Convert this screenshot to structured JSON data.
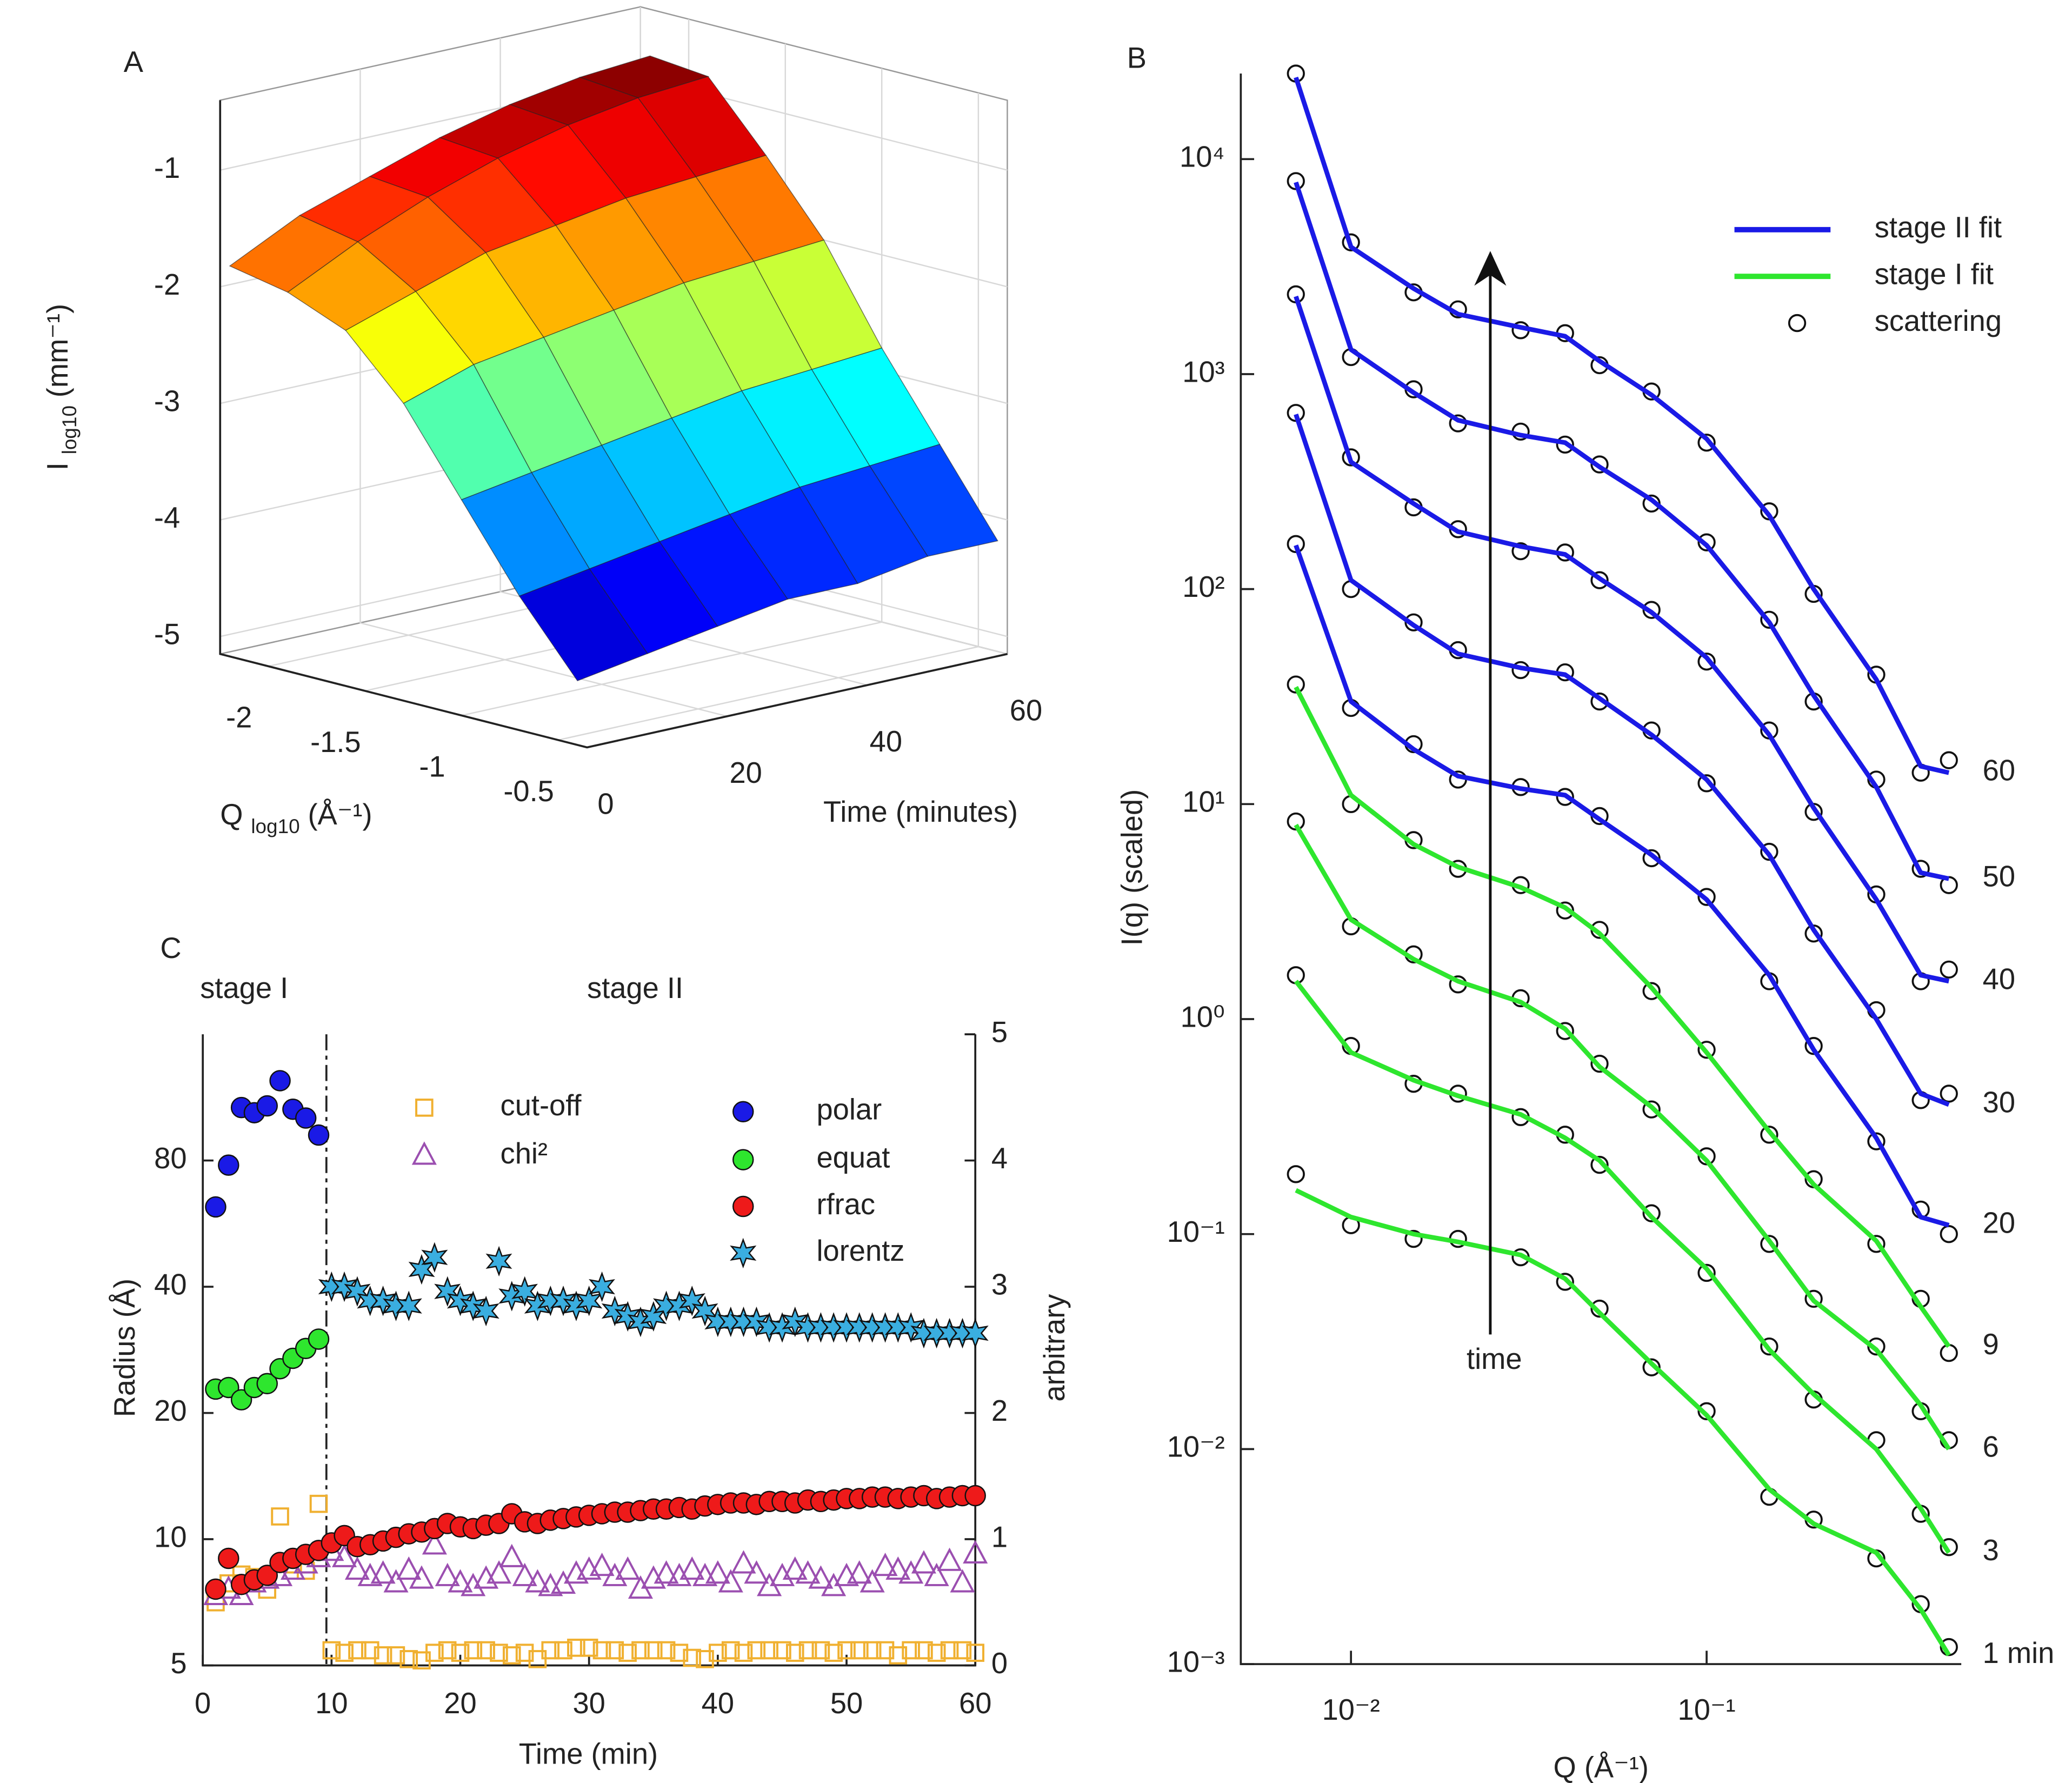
{
  "chart_data": [
    {
      "type": "surface",
      "panel": "A",
      "zlabel": {
        "main": "I",
        "sub": "log10",
        "unit": "(mm⁻¹)"
      },
      "xlabel": {
        "main": "Q",
        "sub": "log10",
        "unit": "(Å⁻¹)"
      },
      "ylabel": "Time (minutes)",
      "x": [
        -2.2,
        -1.9,
        -1.6,
        -1.3,
        -1.0,
        -0.7,
        -0.4
      ],
      "y": [
        0,
        10,
        20,
        30,
        40,
        50,
        60
      ],
      "z": [
        [
          -1.8,
          -1.9,
          -2.1,
          -2.6,
          -3.3,
          -4.0,
          -4.6
        ],
        [
          -1.5,
          -1.6,
          -1.9,
          -2.4,
          -3.2,
          -3.9,
          -4.5
        ],
        [
          -1.3,
          -1.35,
          -1.7,
          -2.3,
          -3.1,
          -3.8,
          -4.4
        ],
        [
          -1.1,
          -1.15,
          -1.6,
          -2.2,
          -3.0,
          -3.7,
          -4.3
        ],
        [
          -0.95,
          -1.0,
          -1.5,
          -2.1,
          -2.9,
          -3.6,
          -4.3
        ],
        [
          -0.85,
          -0.9,
          -1.45,
          -2.05,
          -2.85,
          -3.55,
          -4.2
        ],
        [
          -0.8,
          -0.85,
          -1.4,
          -2.0,
          -2.8,
          -3.5,
          -4.2
        ]
      ],
      "xlim": [
        -2.25,
        -0.35
      ],
      "ylim": [
        0,
        60
      ],
      "zlim": [
        -5.15,
        -0.4
      ],
      "xticks": [
        -2,
        -1.5,
        -1,
        -0.5
      ],
      "yticks": [
        0,
        20,
        40,
        60
      ],
      "zticks": [
        -5,
        -4,
        -3,
        -2,
        -1
      ],
      "colormap": "jet",
      "grid": true
    },
    {
      "type": "line",
      "panel": "B",
      "xlabel": "Q (Å⁻¹)",
      "ylabel": "I(q) (scaled)",
      "annotation": "time",
      "xscale": "log",
      "yscale": "log",
      "xlim": [
        0.0049,
        0.52
      ],
      "ylim": [
        0.001,
        25000
      ],
      "xticks": [
        {
          "value": 0.01,
          "label": "10⁻²"
        },
        {
          "value": 0.1,
          "label": "10⁻¹"
        }
      ],
      "yticks": [
        {
          "value": 0.001,
          "label": "10⁻³"
        },
        {
          "value": 0.01,
          "label": "10⁻²"
        },
        {
          "value": 0.1,
          "label": "10⁻¹"
        },
        {
          "value": 1,
          "label": "10⁰"
        },
        {
          "value": 10,
          "label": "10¹"
        },
        {
          "value": 100,
          "label": "10²"
        },
        {
          "value": 1000,
          "label": "10³"
        },
        {
          "value": 10000,
          "label": "10⁴"
        }
      ],
      "x": [
        0.007,
        0.01,
        0.015,
        0.02,
        0.03,
        0.04,
        0.05,
        0.07,
        0.1,
        0.15,
        0.2,
        0.3,
        0.4,
        0.48
      ],
      "series": [
        {
          "name": "60",
          "color": "#1a1ae6",
          "values": [
            24000,
            3900,
            2500,
            1900,
            1650,
            1500,
            1150,
            800,
            500,
            220,
            100,
            38,
            15,
            14
          ],
          "scatter": [
            25000,
            4100,
            2400,
            2000,
            1600,
            1550,
            1100,
            830,
            480,
            230,
            95,
            40,
            14,
            16
          ]
        },
        {
          "name": "50",
          "color": "#1a1ae6",
          "values": [
            7800,
            1300,
            820,
            610,
            520,
            480,
            370,
            260,
            160,
            70,
            32,
            12,
            4.8,
            4.5
          ],
          "scatter": [
            7900,
            1200,
            850,
            590,
            540,
            470,
            380,
            250,
            165,
            72,
            30,
            13,
            5.0,
            4.2
          ]
        },
        {
          "name": "40",
          "color": "#1a1ae6",
          "values": [
            2300,
            390,
            250,
            185,
            158,
            145,
            112,
            78,
            48,
            21,
            9.6,
            3.6,
            1.6,
            1.5
          ],
          "scatter": [
            2350,
            410,
            240,
            190,
            150,
            148,
            110,
            80,
            46,
            22,
            9.2,
            3.8,
            1.5,
            1.7
          ]
        },
        {
          "name": "30",
          "color": "#1a1ae6",
          "values": [
            650,
            110,
            68,
            50,
            43,
            40,
            31,
            21,
            13,
            5.8,
            2.6,
            1,
            0.45,
            0.4
          ],
          "scatter": [
            660,
            100,
            70,
            52,
            42,
            41,
            30,
            22,
            12.5,
            6.0,
            2.5,
            1.1,
            0.42,
            0.45
          ]
        },
        {
          "name": "20",
          "color": "#1a1ae6",
          "values": [
            160,
            30,
            18,
            13.5,
            11.8,
            11,
            8.5,
            5.8,
            3.6,
            1.6,
            0.72,
            0.28,
            0.12,
            0.11
          ],
          "scatter": [
            162,
            28,
            19,
            13,
            12,
            10.8,
            8.8,
            5.6,
            3.7,
            1.5,
            0.75,
            0.27,
            0.13,
            0.1
          ]
        },
        {
          "name": "9",
          "color": "#2ee62e",
          "values": [
            35,
            11,
            6.5,
            5.1,
            4.1,
            3.3,
            2.5,
            1.4,
            0.7,
            0.3,
            0.17,
            0.093,
            0.046,
            0.03
          ],
          "scatter": [
            36,
            10,
            6.8,
            5.0,
            4.2,
            3.2,
            2.6,
            1.35,
            0.72,
            0.29,
            0.18,
            0.09,
            0.05,
            0.028
          ]
        },
        {
          "name": "6",
          "color": "#2ee62e",
          "values": [
            8,
            2.9,
            1.9,
            1.5,
            1.2,
            0.9,
            0.6,
            0.39,
            0.22,
            0.093,
            0.049,
            0.029,
            0.016,
            0.01
          ],
          "scatter": [
            8.3,
            2.7,
            2.0,
            1.45,
            1.25,
            0.88,
            0.62,
            0.38,
            0.23,
            0.09,
            0.05,
            0.03,
            0.015,
            0.011
          ]
        },
        {
          "name": "3",
          "color": "#2ee62e",
          "values": [
            1.5,
            0.7,
            0.52,
            0.44,
            0.36,
            0.28,
            0.22,
            0.12,
            0.069,
            0.029,
            0.018,
            0.01,
            0.0053,
            0.0033
          ],
          "scatter": [
            1.6,
            0.75,
            0.5,
            0.45,
            0.35,
            0.29,
            0.21,
            0.125,
            0.066,
            0.03,
            0.017,
            0.011,
            0.005,
            0.0035
          ]
        },
        {
          "name": "1 min",
          "color": "#2ee62e",
          "values": [
            0.16,
            0.12,
            0.1,
            0.092,
            0.08,
            0.062,
            0.043,
            0.025,
            0.0144,
            0.0065,
            0.0045,
            0.0033,
            0.0018,
            0.0011
          ],
          "scatter": [
            0.19,
            0.11,
            0.095,
            0.095,
            0.078,
            0.06,
            0.045,
            0.024,
            0.015,
            0.006,
            0.0047,
            0.0031,
            0.0019,
            0.0012
          ]
        }
      ],
      "legend": [
        {
          "name": "stage II fit",
          "color": "#1a1ae6"
        },
        {
          "name": "stage I fit",
          "color": "#2ee62e"
        },
        {
          "name": "scattering"
        }
      ]
    },
    {
      "type": "scatter",
      "panel": "C",
      "xlabel": "Time (min)",
      "ylabel": "Radius (Å)",
      "y2label": "arbitrary",
      "stage_labels": [
        "stage I",
        "stage II"
      ],
      "stage_divider": 9.6,
      "xlim": [
        0,
        60
      ],
      "xticks": [
        0,
        10,
        20,
        30,
        40,
        50,
        60
      ],
      "yscale": "log",
      "ylim": [
        5,
        160
      ],
      "yticks": [
        5,
        10,
        20,
        40,
        80
      ],
      "y2lim": [
        0,
        5
      ],
      "y2ticks": [
        0,
        1,
        2,
        3,
        4,
        5
      ],
      "series": [
        {
          "name": "cut-off",
          "axis": "y2",
          "marker": "square",
          "filled": false,
          "color": "#f0b030",
          "x": [
            1,
            2,
            3,
            4,
            5,
            6,
            7,
            8,
            9,
            10,
            11,
            12,
            13,
            14,
            15,
            16,
            17,
            18,
            19,
            20,
            21,
            22,
            23,
            24,
            25,
            26,
            27,
            28,
            29,
            30,
            31,
            32,
            33,
            34,
            35,
            36,
            37,
            38,
            39,
            40,
            41,
            42,
            43,
            44,
            45,
            46,
            47,
            48,
            49,
            50,
            51,
            52,
            53,
            54,
            55,
            56,
            57,
            58,
            59,
            60
          ],
          "values": [
            0.5,
            0.65,
            0.72,
            0.7,
            0.6,
            1.18,
            0.8,
            0.75,
            1.28,
            0.12,
            0.1,
            0.12,
            0.12,
            0.08,
            0.08,
            0.05,
            0.04,
            0.1,
            0.12,
            0.1,
            0.12,
            0.12,
            0.1,
            0.08,
            0.1,
            0.05,
            0.12,
            0.12,
            0.14,
            0.14,
            0.12,
            0.12,
            0.1,
            0.12,
            0.12,
            0.12,
            0.1,
            0.06,
            0.05,
            0.1,
            0.12,
            0.1,
            0.12,
            0.12,
            0.12,
            0.1,
            0.12,
            0.12,
            0.1,
            0.12,
            0.12,
            0.12,
            0.12,
            0.08,
            0.12,
            0.12,
            0.1,
            0.12,
            0.12,
            0.1
          ]
        },
        {
          "name": "chi²",
          "axis": "y2",
          "marker": "triangle",
          "filled": false,
          "color": "#9b4fb0",
          "x": [
            1,
            2,
            3,
            4,
            5,
            6,
            7,
            8,
            9,
            10,
            11,
            12,
            13,
            14,
            15,
            16,
            17,
            18,
            19,
            20,
            21,
            22,
            23,
            24,
            25,
            26,
            27,
            28,
            29,
            30,
            31,
            32,
            33,
            34,
            35,
            36,
            37,
            38,
            39,
            40,
            41,
            42,
            43,
            44,
            45,
            46,
            47,
            48,
            49,
            50,
            51,
            52,
            53,
            54,
            55,
            56,
            57,
            58,
            59,
            60
          ],
          "values": [
            0.55,
            0.6,
            0.55,
            0.65,
            0.68,
            0.7,
            0.75,
            0.8,
            0.85,
            0.9,
            0.85,
            0.75,
            0.7,
            0.72,
            0.65,
            0.75,
            0.68,
            0.95,
            0.7,
            0.65,
            0.62,
            0.68,
            0.72,
            0.85,
            0.7,
            0.65,
            0.62,
            0.64,
            0.72,
            0.75,
            0.78,
            0.7,
            0.75,
            0.6,
            0.68,
            0.72,
            0.7,
            0.75,
            0.7,
            0.72,
            0.65,
            0.8,
            0.72,
            0.62,
            0.7,
            0.75,
            0.72,
            0.68,
            0.62,
            0.7,
            0.72,
            0.65,
            0.78,
            0.75,
            0.72,
            0.8,
            0.7,
            0.82,
            0.65,
            0.88
          ]
        },
        {
          "name": "polar",
          "marker": "circle",
          "filled": true,
          "color": "#1a1ae6",
          "x": [
            1,
            2,
            3,
            4,
            5,
            6,
            7,
            8,
            9
          ],
          "values": [
            62,
            78,
            107,
            104,
            108,
            124,
            106,
            101,
            92
          ]
        },
        {
          "name": "equat",
          "marker": "circle",
          "filled": true,
          "color": "#2ee62e",
          "x": [
            1,
            2,
            3,
            4,
            5,
            6,
            7,
            8,
            9
          ],
          "values": [
            22.8,
            23,
            21.5,
            23,
            23.5,
            25.5,
            27,
            28.5,
            30
          ]
        },
        {
          "name": "rfrac",
          "marker": "circle",
          "filled": true,
          "color": "#ee1a1a",
          "x": [
            1,
            2,
            3,
            4,
            5,
            6,
            7,
            8,
            9,
            10,
            11,
            12,
            13,
            14,
            15,
            16,
            17,
            18,
            19,
            20,
            21,
            22,
            23,
            24,
            25,
            26,
            27,
            28,
            29,
            30,
            31,
            32,
            33,
            34,
            35,
            36,
            37,
            38,
            39,
            40,
            41,
            42,
            43,
            44,
            45,
            46,
            47,
            48,
            49,
            50,
            51,
            52,
            53,
            54,
            55,
            56,
            57,
            58,
            59,
            60
          ],
          "values": [
            7.6,
            9.0,
            7.8,
            8.0,
            8.2,
            8.8,
            9.0,
            9.2,
            9.4,
            9.8,
            10.2,
            9.6,
            9.7,
            9.9,
            10.1,
            10.3,
            10.4,
            10.6,
            10.9,
            10.7,
            10.6,
            10.8,
            10.9,
            11.5,
            11.0,
            10.9,
            11.1,
            11.2,
            11.3,
            11.4,
            11.5,
            11.6,
            11.6,
            11.7,
            11.8,
            11.8,
            11.9,
            11.8,
            12.0,
            12.1,
            12.2,
            12.2,
            12.1,
            12.3,
            12.3,
            12.2,
            12.4,
            12.3,
            12.4,
            12.5,
            12.5,
            12.6,
            12.6,
            12.5,
            12.6,
            12.7,
            12.5,
            12.6,
            12.7,
            12.7
          ]
        },
        {
          "name": "lorentz",
          "marker": "star",
          "filled": true,
          "color": "#3aaee0",
          "x": [
            10,
            11,
            12,
            13,
            14,
            15,
            16,
            17,
            18,
            19,
            20,
            21,
            22,
            23,
            24,
            25,
            26,
            27,
            28,
            29,
            30,
            31,
            32,
            33,
            34,
            35,
            36,
            37,
            38,
            39,
            40,
            41,
            42,
            43,
            44,
            45,
            46,
            47,
            48,
            49,
            50,
            51,
            52,
            53,
            54,
            55,
            56,
            57,
            58,
            59,
            60
          ],
          "values": [
            40,
            40,
            39,
            37,
            37,
            36,
            36,
            44,
            47,
            39,
            37,
            36,
            35,
            46,
            38,
            39,
            36,
            37,
            37,
            36,
            37,
            40,
            35,
            34,
            33,
            34,
            36,
            36,
            37,
            35,
            33,
            33,
            33,
            33,
            32,
            32,
            33,
            32,
            32,
            32,
            32,
            32,
            32,
            32,
            32,
            32,
            31,
            31,
            31,
            31,
            31
          ]
        }
      ]
    }
  ]
}
